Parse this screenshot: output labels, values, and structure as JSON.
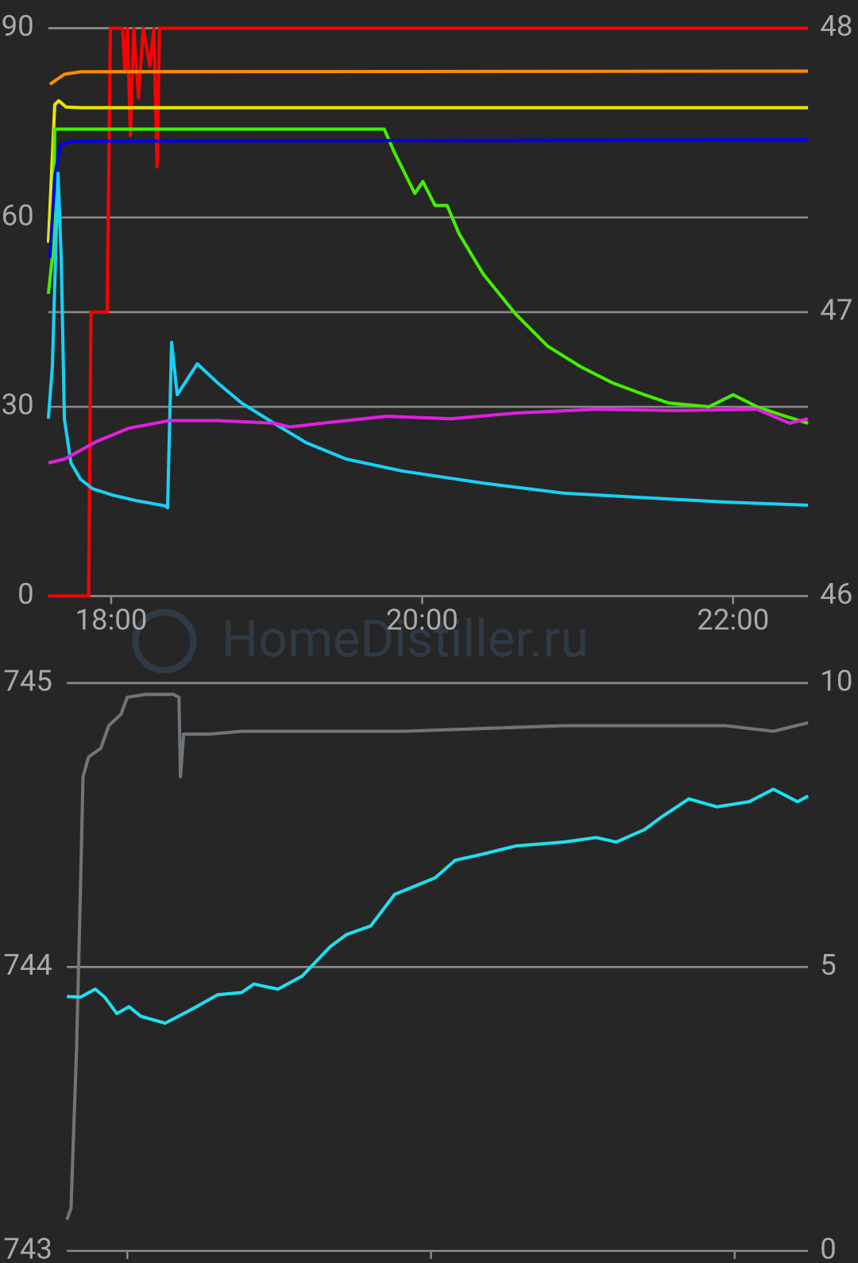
{
  "watermark": "HomeDistiller.ru",
  "chart_data": [
    {
      "type": "line",
      "xlim": [
        17.596,
        22.482
      ],
      "xticks": [
        {
          "value": 18,
          "label": "18:00"
        },
        {
          "value": 20,
          "label": "20:00"
        },
        {
          "value": 22,
          "label": "22:00"
        }
      ],
      "ylim": [
        0,
        90
      ],
      "yticks": [
        0,
        30,
        60,
        90
      ],
      "y2lim": [
        46,
        48
      ],
      "y2ticks": [
        46,
        47,
        48
      ],
      "grid": true,
      "series": [
        {
          "color": "#ff0000",
          "x": [
            17.596,
            17.855,
            17.87,
            17.974,
            17.995,
            18.073,
            18.088,
            18.104,
            18.124,
            18.145,
            18.176,
            18.207,
            18.249,
            18.275,
            18.295,
            18.311,
            22.482
          ],
          "values": [
            0,
            0,
            45,
            45,
            90,
            90,
            83,
            90,
            73,
            90,
            79,
            90,
            84,
            90,
            68,
            90,
            90
          ]
        },
        {
          "color": "#ff8c00",
          "x": [
            17.606,
            17.699,
            17.803,
            22.482
          ],
          "values": [
            81.1,
            82.7,
            83.1,
            83.2
          ]
        },
        {
          "color": "#e6e600",
          "x": [
            17.596,
            17.637,
            17.663,
            17.71,
            17.803,
            22.482
          ],
          "values": [
            56,
            77.9,
            78.5,
            77.5,
            77.4,
            77.4
          ]
        },
        {
          "color": "#44ee00",
          "x": [
            17.596,
            17.627,
            17.637,
            19.756,
            19.824,
            19.953,
            20.005,
            20.083,
            20.161,
            20.238,
            20.394,
            20.601,
            20.808,
            21.016,
            21.223,
            21.43,
            21.585,
            21.845,
            22.0,
            22.155,
            22.311,
            22.482
          ],
          "values": [
            47.9,
            54.9,
            74,
            74,
            70.2,
            63.8,
            65.7,
            61.9,
            61.9,
            57.4,
            51,
            44.7,
            39.6,
            36.4,
            33.8,
            31.9,
            30.6,
            30,
            31.9,
            30,
            28.7,
            27.4
          ]
        },
        {
          "color": "#0000ee",
          "x": [
            17.606,
            17.637,
            17.674,
            17.751,
            22.482
          ],
          "values": [
            53.6,
            66.4,
            71.5,
            72.1,
            72.3
          ]
        },
        {
          "color": "#1ad0f5",
          "x": [
            17.596,
            17.622,
            17.658,
            17.679,
            17.699,
            17.741,
            17.803,
            17.881,
            18.01,
            18.166,
            18.347,
            18.363,
            18.389,
            18.425,
            18.554,
            18.684,
            18.839,
            19.047,
            19.254,
            19.513,
            19.876,
            20.394,
            20.912,
            21.43,
            21.948,
            22.482
          ],
          "values": [
            28.1,
            36.4,
            67,
            53.6,
            28.1,
            21.1,
            18.5,
            17,
            16,
            15.1,
            14.3,
            14,
            40.2,
            31.9,
            36.8,
            33.8,
            30.6,
            27.4,
            24.3,
            21.7,
            19.8,
            17.9,
            16.3,
            15.6,
            14.9,
            14.4
          ]
        },
        {
          "color": "#e020e0",
          "x": [
            17.596,
            17.699,
            17.907,
            18.114,
            18.373,
            18.684,
            19.047,
            19.15,
            19.358,
            19.772,
            20.187,
            20.601,
            21.119,
            21.637,
            22.155,
            22.363,
            22.482
          ],
          "values": [
            21.1,
            21.7,
            24.5,
            26.6,
            27.8,
            27.8,
            27.4,
            26.8,
            27.4,
            28.5,
            28.1,
            29,
            29.6,
            29.4,
            29.6,
            27.4,
            28.1
          ]
        }
      ]
    },
    {
      "type": "line",
      "xlim": [
        17.602,
        22.483
      ],
      "xticks": [
        18,
        20,
        22
      ],
      "ylim": [
        743,
        745
      ],
      "yticks": [
        743,
        744,
        745
      ],
      "y2lim": [
        0,
        10
      ],
      "y2ticks": [
        0,
        5,
        10
      ],
      "grid": true,
      "series": [
        {
          "color": "#70757b",
          "x": [
            17.602,
            17.629,
            17.666,
            17.692,
            17.708,
            17.745,
            17.825,
            17.878,
            17.958,
            18.0,
            18.117,
            18.302,
            18.34,
            18.35,
            18.371,
            18.541,
            18.753,
            19.284,
            19.814,
            20.345,
            20.875,
            21.406,
            21.936,
            22.255,
            22.483
          ],
          "values": [
            743.11,
            743.15,
            743.72,
            744.29,
            744.67,
            744.74,
            744.77,
            744.85,
            744.89,
            744.95,
            744.96,
            744.96,
            744.95,
            744.67,
            744.82,
            744.82,
            744.83,
            744.83,
            744.83,
            744.84,
            744.85,
            744.85,
            744.85,
            744.83,
            744.86
          ]
        },
        {
          "color": "#1ee0f0",
          "axis": "y2",
          "x": [
            17.602,
            17.692,
            17.788,
            17.851,
            17.931,
            18.011,
            18.09,
            18.249,
            18.435,
            18.594,
            18.753,
            18.833,
            18.992,
            19.151,
            19.337,
            19.443,
            19.602,
            19.761,
            20.027,
            20.159,
            20.345,
            20.557,
            20.875,
            21.088,
            21.22,
            21.406,
            21.512,
            21.698,
            21.883,
            22.095,
            22.255,
            22.414,
            22.483
          ],
          "values": [
            4.48,
            4.47,
            4.61,
            4.47,
            4.18,
            4.3,
            4.13,
            4.01,
            4.27,
            4.51,
            4.55,
            4.7,
            4.61,
            4.84,
            5.36,
            5.57,
            5.72,
            6.28,
            6.57,
            6.88,
            6.99,
            7.13,
            7.2,
            7.28,
            7.2,
            7.42,
            7.63,
            7.96,
            7.82,
            7.91,
            8.13,
            7.91,
            8.01
          ]
        }
      ]
    }
  ]
}
